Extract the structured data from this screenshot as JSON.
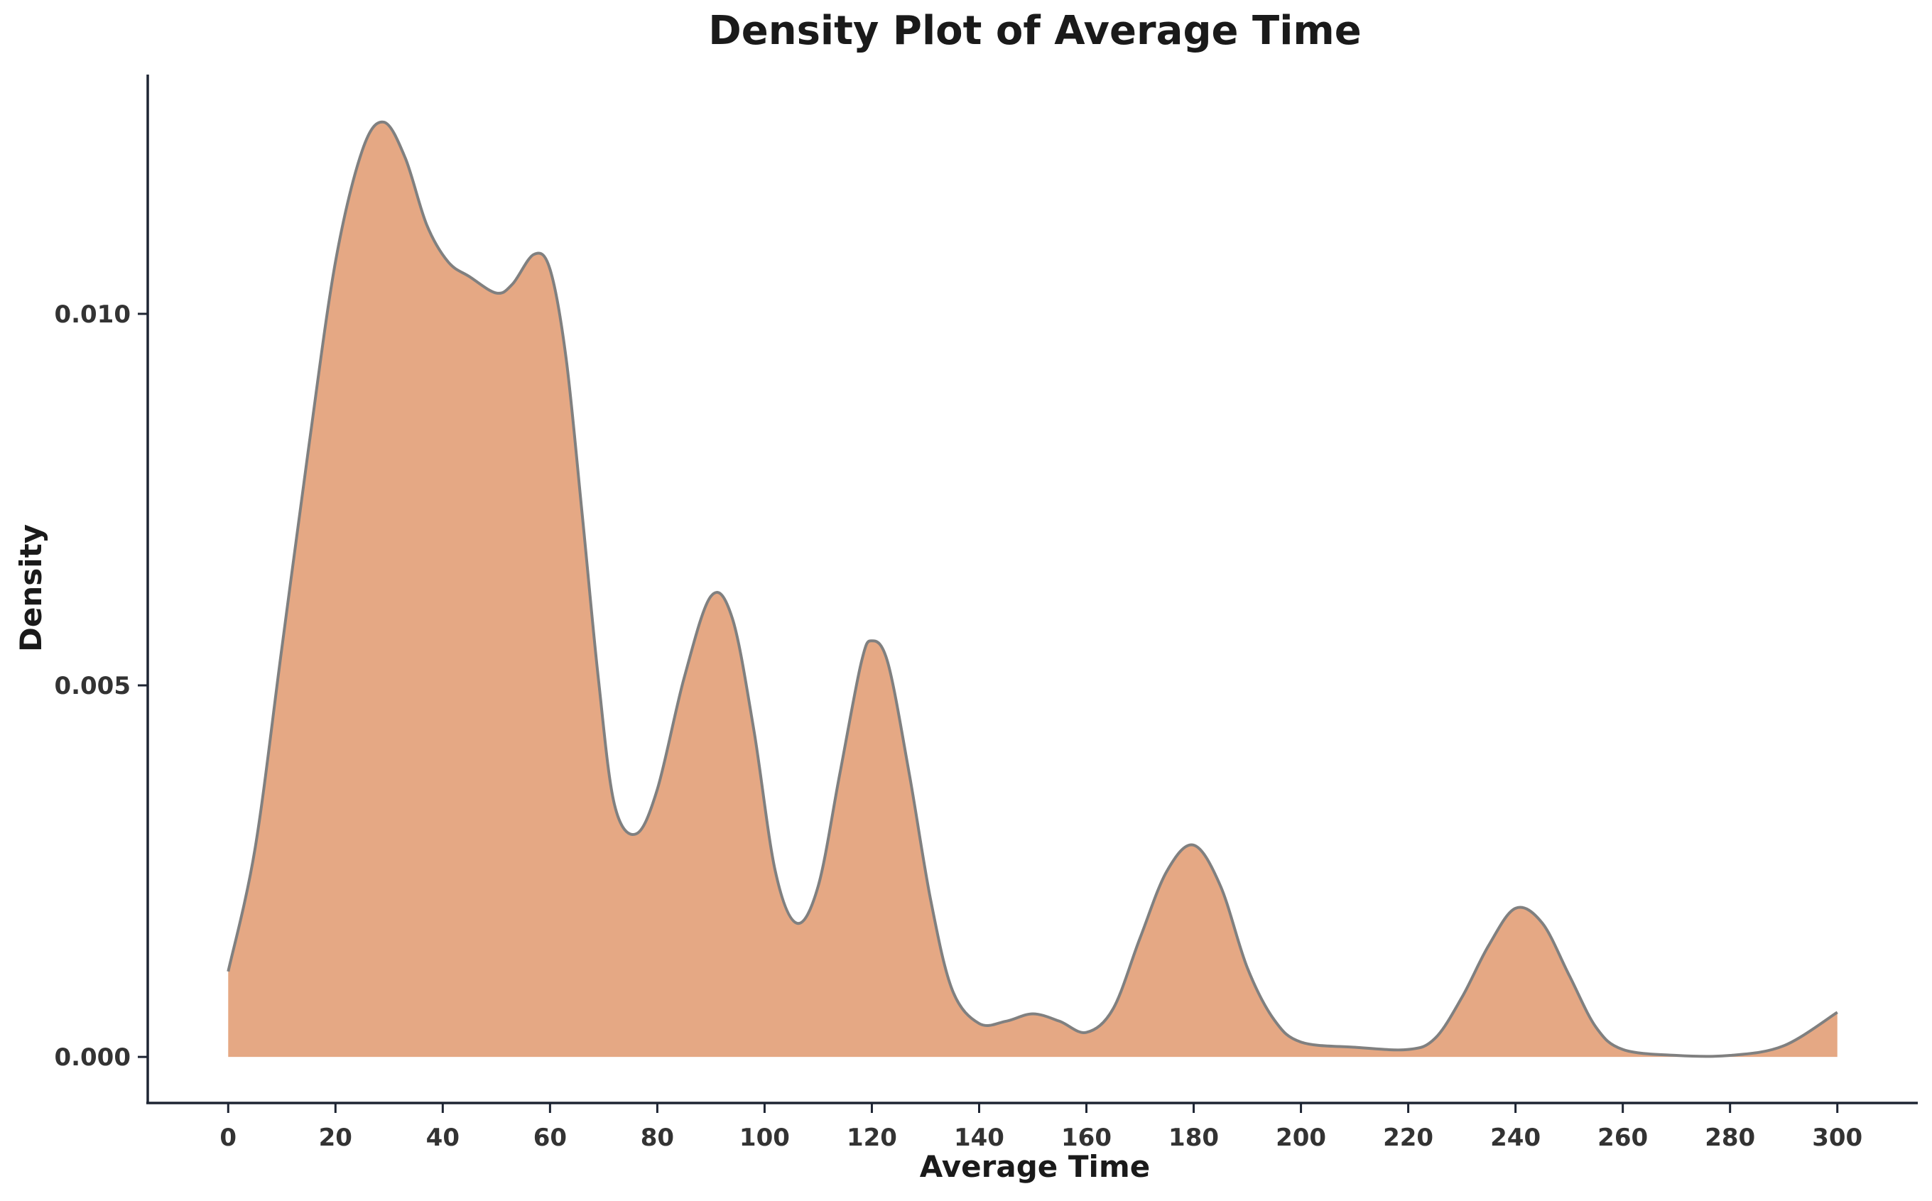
{
  "chart_data": {
    "type": "area",
    "title": "Density Plot of Average Time",
    "xlabel": "Average Time",
    "ylabel": "Density",
    "xlim": [
      -15,
      315
    ],
    "ylim": [
      -0.00062,
      0.01322
    ],
    "x_ticks": [
      0,
      20,
      40,
      60,
      80,
      100,
      120,
      140,
      160,
      180,
      200,
      220,
      240,
      260,
      280,
      300
    ],
    "x_tick_labels": [
      "0",
      "20",
      "40",
      "60",
      "80",
      "100",
      "120",
      "140",
      "160",
      "180",
      "200",
      "220",
      "240",
      "260",
      "280",
      "300"
    ],
    "y_ticks": [
      0.0,
      0.005,
      0.01
    ],
    "y_tick_labels": [
      "0.000",
      "0.005",
      "0.010"
    ],
    "grid": false,
    "legend": "none",
    "fill_color": "#e5a884",
    "line_color": "#808080",
    "axis_color": "#1e2533",
    "series": [
      {
        "x": [
          0,
          5,
          10,
          15,
          20,
          25,
          29,
          33,
          37,
          41,
          45,
          50,
          53,
          57,
          60,
          63,
          66,
          69,
          72,
          76,
          80,
          85,
          90,
          94,
          98,
          102,
          106,
          110,
          114,
          118,
          120,
          123,
          127,
          131,
          135,
          140,
          145,
          150,
          155,
          160,
          165,
          170,
          175,
          180,
          185,
          190,
          195,
          200,
          210,
          220,
          225,
          230,
          235,
          240,
          245,
          250,
          255,
          260,
          270,
          280,
          290,
          300
        ],
        "y": [
          0.00115,
          0.0028,
          0.0055,
          0.0082,
          0.0107,
          0.0122,
          0.01258,
          0.0121,
          0.0112,
          0.0107,
          0.0105,
          0.01028,
          0.0104,
          0.0108,
          0.0106,
          0.0094,
          0.0073,
          0.0051,
          0.0034,
          0.003,
          0.0036,
          0.0051,
          0.0062,
          0.0059,
          0.0044,
          0.0025,
          0.0018,
          0.0023,
          0.0038,
          0.0053,
          0.0056,
          0.0053,
          0.0038,
          0.0021,
          0.0009,
          0.00045,
          0.00048,
          0.00058,
          0.00048,
          0.00033,
          0.00065,
          0.0016,
          0.0025,
          0.00285,
          0.0023,
          0.0012,
          0.0005,
          0.0002,
          0.00013,
          0.0001,
          0.00025,
          0.0008,
          0.0015,
          0.002,
          0.0018,
          0.0011,
          0.0004,
          0.0001,
          2e-05,
          2e-05,
          0.00015,
          0.0006
        ]
      }
    ]
  }
}
